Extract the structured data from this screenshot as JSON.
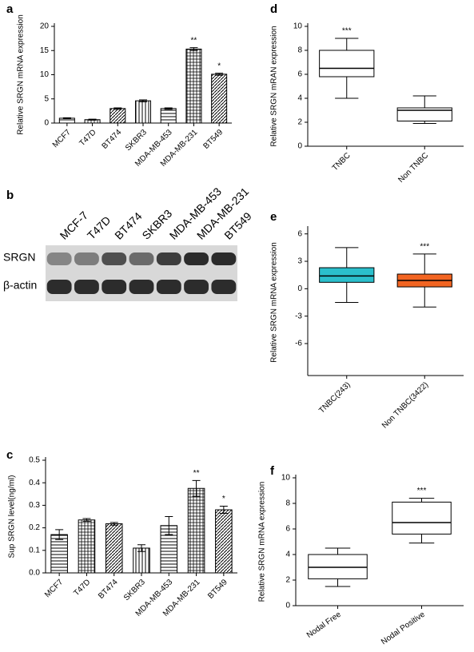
{
  "chart_data": [
    {
      "type": "bar",
      "label": "a",
      "ylabel": "Relative SRGN mRNA expression",
      "categories": [
        "MCF7",
        "T47D",
        "BT474",
        "SKBR3",
        "MDA-MB-453",
        "MDA-MB-231",
        "BT549"
      ],
      "values": [
        1.0,
        0.7,
        3.0,
        4.6,
        3.0,
        15.3,
        10.1
      ],
      "errors": [
        0.1,
        0.1,
        0.15,
        0.2,
        0.15,
        0.3,
        0.2
      ],
      "annotations": [
        null,
        null,
        null,
        null,
        null,
        "**",
        "*"
      ],
      "ylim": [
        0,
        20
      ],
      "yticks": [
        0,
        5,
        10,
        15,
        20
      ]
    },
    {
      "type": "bar",
      "label": "c",
      "ylabel": "Sup SRGN level(ng/ml)",
      "categories": [
        "MCF7",
        "T47D",
        "BT474",
        "SKBR3",
        "MDA-MB-453",
        "MDA-MB-231",
        "BT549"
      ],
      "values": [
        0.17,
        0.235,
        0.218,
        0.11,
        0.21,
        0.375,
        0.28
      ],
      "errors": [
        0.022,
        0.006,
        0.006,
        0.015,
        0.04,
        0.035,
        0.016
      ],
      "annotations": [
        null,
        null,
        null,
        null,
        null,
        "**",
        "*"
      ],
      "ylim": [
        0,
        0.5
      ],
      "yticks": [
        {
          "value": 0,
          "label": "0.0"
        },
        0.1,
        0.2,
        0.3,
        0.4,
        0.5
      ]
    },
    {
      "type": "box",
      "label": "d",
      "ylabel": "Relative SRGN mRAN expression",
      "categories": [
        "TNBC",
        "Non TNBC"
      ],
      "min": [
        4.0,
        1.9
      ],
      "q1": [
        5.8,
        2.1
      ],
      "median": [
        6.5,
        3.0
      ],
      "q3": [
        8.0,
        3.2
      ],
      "max": [
        9.0,
        4.2
      ],
      "colors": [
        "#ffffff",
        "#ffffff"
      ],
      "annotations": [
        "***",
        null
      ],
      "ylim": [
        0,
        10
      ],
      "yticks": [
        0,
        2,
        4,
        6,
        8,
        10
      ]
    },
    {
      "type": "box",
      "label": "e",
      "ylabel": "Relative SRGN mRNA expression",
      "categories": [
        "TNBC(243)",
        "Non TNBC(3422)"
      ],
      "min": [
        -1.5,
        -2.0
      ],
      "q1": [
        0.7,
        0.2
      ],
      "median": [
        1.4,
        0.9
      ],
      "q3": [
        2.3,
        1.6
      ],
      "max": [
        4.5,
        3.8
      ],
      "colors": [
        "#2bbfcc",
        "#f26522"
      ],
      "annotations": [
        null,
        "***"
      ],
      "ylim": [
        -9.5,
        6.5
      ],
      "yticks": [
        -6,
        -3,
        0,
        3,
        6
      ]
    },
    {
      "type": "box",
      "label": "f",
      "ylabel": "Relative SRGN mRNA expression",
      "categories": [
        "Nodal Free",
        "Nodal Positive"
      ],
      "min": [
        1.5,
        4.9
      ],
      "q1": [
        2.1,
        5.6
      ],
      "median": [
        3.0,
        6.5
      ],
      "q3": [
        4.0,
        8.1
      ],
      "max": [
        4.5,
        8.4
      ],
      "colors": [
        "#ffffff",
        "#ffffff"
      ],
      "annotations": [
        null,
        "***"
      ],
      "ylim": [
        0,
        10
      ],
      "yticks": [
        0,
        2,
        4,
        6,
        8,
        10
      ]
    }
  ],
  "blot": {
    "label": "b",
    "lanes": [
      "MCF-7",
      "T47D",
      "BT474",
      "SKBR3",
      "MDA-MB-453",
      "MDA-MB-231",
      "BT549"
    ],
    "rows": [
      "SRGN",
      "β-actin"
    ]
  }
}
